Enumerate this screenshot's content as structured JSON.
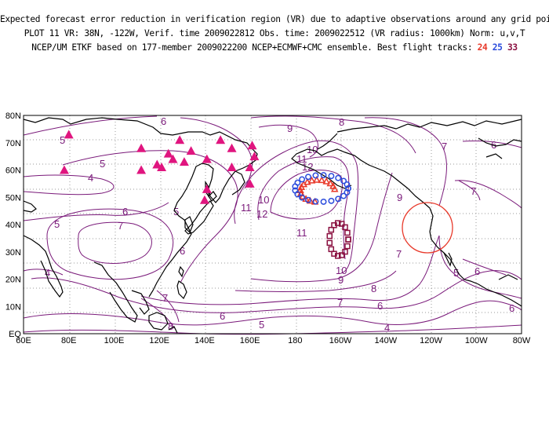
{
  "header": {
    "line1": "Expected forecast error reduction in verification region (VR) due to adaptive observations around any grid point.",
    "line2": "PLOT 11 VR: 38N, -122W, Verif. time 2009022812 Obs. time: 2009022512 (VR radius: 1000km) Norm: u,v,T",
    "line3": "NCEP/UM ETKF based on 177-member 2009022200 NCEP+ECMWF+CMC ensemble. Best flight tracks: ",
    "track_labels": [
      {
        "label": "24",
        "color": "#e8392a"
      },
      {
        "label": "25",
        "color": "#2a4bdc"
      },
      {
        "label": "33",
        "color": "#8a1040"
      }
    ]
  },
  "axes": {
    "y_ticks": [
      "80N",
      "70N",
      "60N",
      "50N",
      "40N",
      "30N",
      "20N",
      "10N",
      "EQ"
    ],
    "x_ticks": [
      "60E",
      "80E",
      "100E",
      "120E",
      "140E",
      "160E",
      "180",
      "160W",
      "140W",
      "120W",
      "100W",
      "80W"
    ]
  },
  "colors": {
    "contour": "#7a1a7a",
    "coast": "#000000",
    "triangle": "#e0157f",
    "track24": "#e8392a",
    "track25": "#2a4bdc",
    "track33": "#8a1040",
    "vr_circle": "#e8392a",
    "grid": "#9a9a9a"
  },
  "verification_region": {
    "lat": 38,
    "lon": -122,
    "radius_km": 1000
  },
  "contour_labels": [
    "4",
    "5",
    "6",
    "7",
    "8",
    "9",
    "10",
    "11",
    "12"
  ],
  "observation_sites": [
    {
      "lat": 73,
      "lon": 80
    },
    {
      "lat": 68,
      "lon": 112
    },
    {
      "lat": 66,
      "lon": 124
    },
    {
      "lat": 71,
      "lon": 129
    },
    {
      "lat": 67,
      "lon": 134
    },
    {
      "lat": 71,
      "lon": 147
    },
    {
      "lat": 68,
      "lon": 152
    },
    {
      "lat": 69,
      "lon": 161
    },
    {
      "lat": 60,
      "lon": 78
    },
    {
      "lat": 62,
      "lon": 119
    },
    {
      "lat": 64,
      "lon": 126
    },
    {
      "lat": 63,
      "lon": 131
    },
    {
      "lat": 60,
      "lon": 112
    },
    {
      "lat": 61,
      "lon": 121
    },
    {
      "lat": 61,
      "lon": 160
    },
    {
      "lat": 64,
      "lon": 141
    },
    {
      "lat": 61,
      "lon": 152
    },
    {
      "lat": 65,
      "lon": 162
    },
    {
      "lat": 53,
      "lon": 141
    },
    {
      "lat": 49,
      "lon": 140
    },
    {
      "lat": 55,
      "lon": 160
    }
  ]
}
